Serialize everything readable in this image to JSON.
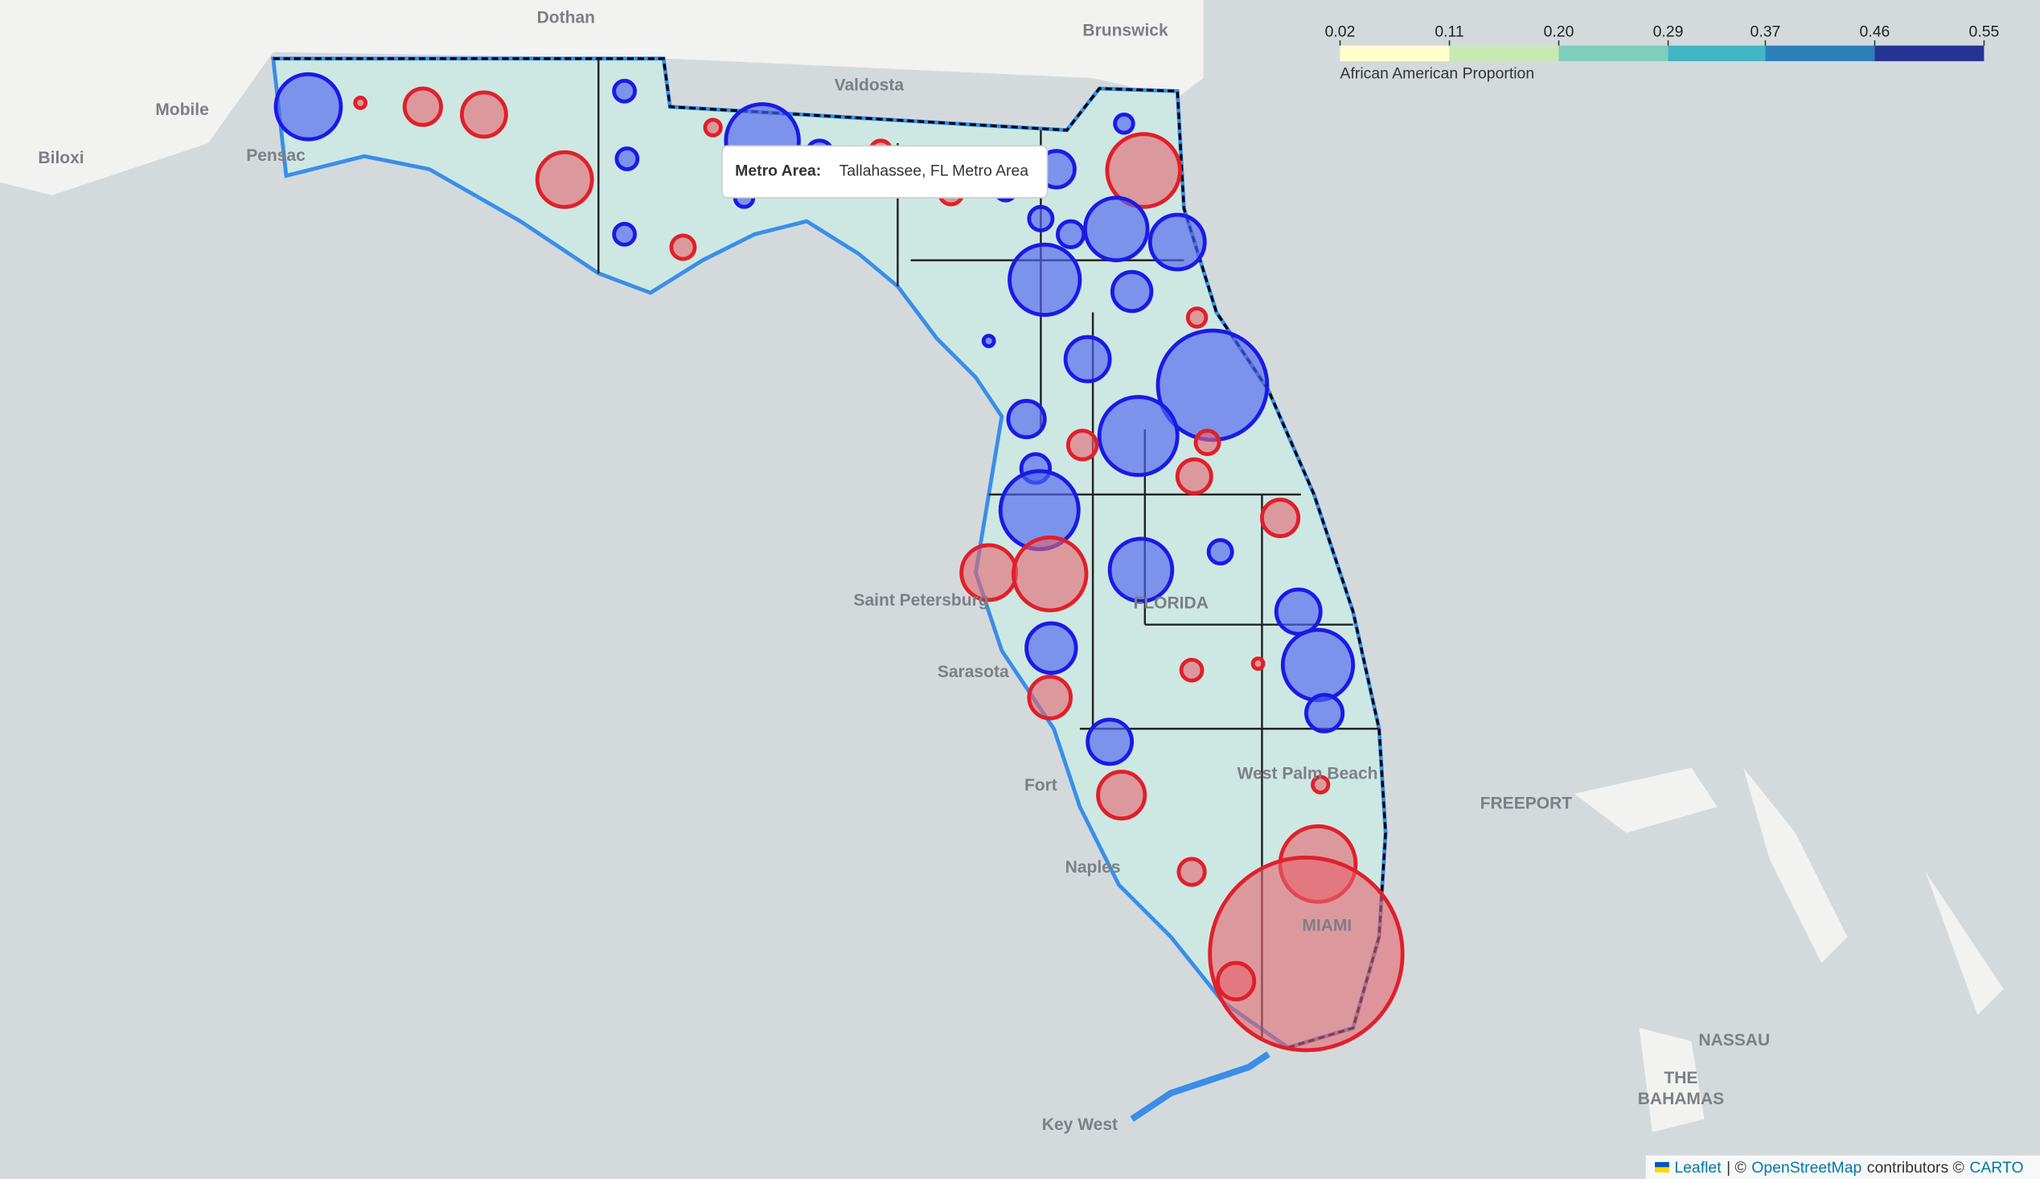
{
  "legend": {
    "title": "African American Proportion",
    "ticks": [
      0.02,
      0.11,
      {
        "value": 0.2,
        "label": "0.20"
      },
      0.29,
      0.37,
      0.46,
      0.55
    ],
    "colors": [
      "#ffffcc",
      "#c7e9b4",
      "#7fcdbb",
      "#41b6c4",
      "#2c7fb8",
      "#253494"
    ]
  },
  "tooltip": {
    "label": "Metro Area:",
    "value": "Tallahassee, FL Metro Area"
  },
  "places": [
    "Dothan",
    "Brunswick",
    "Mobile",
    "Valdosta",
    "Biloxi",
    "Pensac",
    "Saint Petersburg",
    "Sarasota",
    "Fort",
    "Naples",
    "Key West",
    "FREEPORT",
    "NASSAU",
    "THE",
    "BAHAMAS",
    "MIAMI",
    "West Palm Beach",
    "FLORIDA"
  ],
  "attribution": [
    "Leaflet",
    "| ©",
    "OpenStreetMap",
    "contributors ©",
    "CARTO"
  ]
}
